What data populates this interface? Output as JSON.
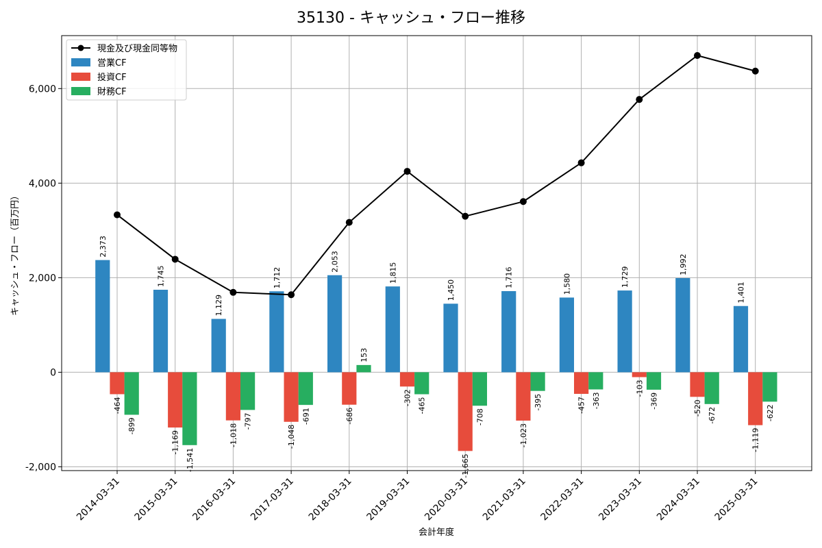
{
  "chart_data": {
    "type": "bar",
    "title": "35130 - キャッシュ・フロー推移",
    "xlabel": "会計年度",
    "ylabel": "キャッシュ・フロー（百万円）",
    "categories": [
      "2014-03-31",
      "2015-03-31",
      "2016-03-31",
      "2017-03-31",
      "2018-03-31",
      "2019-03-31",
      "2020-03-31",
      "2021-03-31",
      "2022-03-31",
      "2023-03-31",
      "2024-03-31",
      "2025-03-31"
    ],
    "ylim": [
      -2080,
      7120
    ],
    "yticks": [
      -2000,
      0,
      2000,
      4000,
      6000
    ],
    "ytick_labels": [
      "-2,000",
      "0",
      "2,000",
      "4,000",
      "6,000"
    ],
    "grid": true,
    "legend_position": "top-left",
    "series": [
      {
        "name": "営業CF",
        "type": "bar",
        "color": "#2e86c1",
        "values": [
          2373,
          1745,
          1129,
          1712,
          2053,
          1815,
          1450,
          1716,
          1580,
          1729,
          1992,
          1401
        ],
        "labels": [
          "2,373",
          "1,745",
          "1,129",
          "1,712",
          "2,053",
          "1,815",
          "1,450",
          "1,716",
          "1,580",
          "1,729",
          "1,992",
          "1,401"
        ]
      },
      {
        "name": "投資CF",
        "type": "bar",
        "color": "#e74c3c",
        "values": [
          -464,
          -1169,
          -1018,
          -1048,
          -686,
          -302,
          -1665,
          -1023,
          -457,
          -103,
          -520,
          -1119
        ],
        "labels": [
          "-464",
          "-1,169",
          "-1,018",
          "-1,048",
          "-686",
          "-302",
          "-1,665",
          "-1,023",
          "-457",
          "-103",
          "-520",
          "-1,119"
        ]
      },
      {
        "name": "財務CF",
        "type": "bar",
        "color": "#27ae60",
        "values": [
          -899,
          -1541,
          -797,
          -691,
          153,
          -465,
          -708,
          -395,
          -363,
          -369,
          -672,
          -622
        ],
        "labels": [
          "-899",
          "-1,541",
          "-797",
          "-691",
          "153",
          "-465",
          "-708",
          "-395",
          "-363",
          "-369",
          "-672",
          "-622"
        ]
      },
      {
        "name": "現金及び現金同等物",
        "type": "line",
        "color": "#000000",
        "values": [
          3330,
          2390,
          1690,
          1640,
          3170,
          4250,
          3300,
          3610,
          4430,
          5770,
          6700,
          6370
        ]
      }
    ]
  }
}
